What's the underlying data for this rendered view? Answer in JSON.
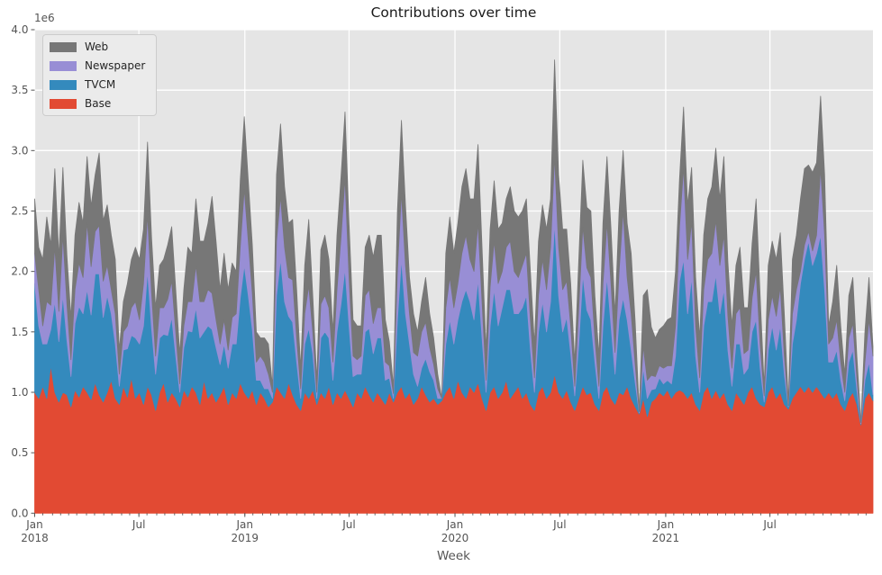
{
  "title": "Contributions over time",
  "axes": {
    "xlabel": "Week",
    "ylabel_offset": "1e6",
    "y_ticks": [
      "0.0",
      "0.5",
      "1.0",
      "1.5",
      "2.0",
      "2.5",
      "3.0",
      "3.5",
      "4.0"
    ],
    "x_major_ticks": [
      {
        "month": "2018-01",
        "label": "Jan",
        "year": "2018"
      },
      {
        "month": "2018-07",
        "label": "Jul"
      },
      {
        "month": "2019-01",
        "label": "Jan",
        "year": "2019"
      },
      {
        "month": "2019-07",
        "label": "Jul"
      },
      {
        "month": "2020-01",
        "label": "Jan",
        "year": "2020"
      },
      {
        "month": "2020-07",
        "label": "Jul"
      },
      {
        "month": "2021-01",
        "label": "Jan",
        "year": "2021"
      },
      {
        "month": "2021-07",
        "label": "Jul"
      }
    ]
  },
  "legend": {
    "items": [
      {
        "label": "Web",
        "color": "#777777"
      },
      {
        "label": "Newspaper",
        "color": "#988ED5"
      },
      {
        "label": "TVCM",
        "color": "#348ABD"
      },
      {
        "label": "Base",
        "color": "#E24A33"
      }
    ]
  },
  "style": {
    "figure_bg": "#ffffff",
    "plot_bg": "#e5e5e5",
    "grid_color": "#ffffff",
    "tick_color": "#555555",
    "text_color": "#262626"
  },
  "chart_data": {
    "type": "area",
    "stacked": true,
    "title": "Contributions over time",
    "xlabel": "Week",
    "x_start": "2018-01-01",
    "x_freq_days": 7,
    "n_points": 209,
    "value_scale": 1000000,
    "ylim": [
      0,
      4000000
    ],
    "grid": true,
    "legend_position": "upper-left",
    "series": [
      {
        "name": "Base",
        "color": "#E24A33",
        "values": [
          1.0,
          0.95,
          1.05,
          0.95,
          1.22,
          1.0,
          0.92,
          1.0,
          0.98,
          0.88,
          1.02,
          0.96,
          1.05,
          1.0,
          0.94,
          1.08,
          0.98,
          0.92,
          1.0,
          1.1,
          0.95,
          0.9,
          1.05,
          0.96,
          1.12,
          0.95,
          1.0,
          0.9,
          1.05,
          0.98,
          0.85,
          1.0,
          1.08,
          0.92,
          1.0,
          0.95,
          0.88,
          1.02,
          0.96,
          1.05,
          1.0,
          0.9,
          1.1,
          0.95,
          1.0,
          0.92,
          0.98,
          1.05,
          0.9,
          1.0,
          0.95,
          1.08,
          1.0,
          0.95,
          1.02,
          0.9,
          1.0,
          0.95,
          0.88,
          0.92,
          1.05,
          1.0,
          0.95,
          1.08,
          0.98,
          0.9,
          0.85,
          1.0,
          0.95,
          1.02,
          0.9,
          1.0,
          0.95,
          1.05,
          0.9,
          1.0,
          0.95,
          1.02,
          0.95,
          0.88,
          1.0,
          0.95,
          1.05,
          0.98,
          0.92,
          1.0,
          0.95,
          0.9,
          1.0,
          0.92,
          1.0,
          1.05,
          0.95,
          1.0,
          0.9,
          0.95,
          1.05,
          0.98,
          0.92,
          0.95,
          0.9,
          0.93,
          1.0,
          1.05,
          0.95,
          1.1,
          1.0,
          0.95,
          1.05,
          1.0,
          1.08,
          0.95,
          0.85,
          1.0,
          1.05,
          0.95,
          1.0,
          1.1,
          0.95,
          1.0,
          1.05,
          0.95,
          1.0,
          0.9,
          0.85,
          1.0,
          1.05,
          0.95,
          1.0,
          1.15,
          1.0,
          0.95,
          1.02,
          0.92,
          0.85,
          0.95,
          1.05,
          0.98,
          1.0,
          0.9,
          0.85,
          1.0,
          1.05,
          0.95,
          0.9,
          1.0,
          0.98,
          1.05,
          0.95,
          0.88,
          0.82,
          0.95,
          0.8,
          0.92,
          0.95,
          1.0,
          0.97,
          1.02,
          0.95,
          1.0,
          1.02,
          1.0,
          0.95,
          1.0,
          0.9,
          0.85,
          1.0,
          1.05,
          0.95,
          1.02,
          0.95,
          1.0,
          0.9,
          0.85,
          1.0,
          0.95,
          0.9,
          1.0,
          1.05,
          0.95,
          0.9,
          0.88,
          1.0,
          1.05,
          0.95,
          1.0,
          0.9,
          0.86,
          0.95,
          1.0,
          1.05,
          1.0,
          1.05,
          1.0,
          1.05,
          1.0,
          0.95,
          1.0,
          0.95,
          1.0,
          0.9,
          0.85,
          0.95,
          1.0,
          0.9,
          0.73,
          0.95,
          1.0,
          0.93
        ]
      },
      {
        "name": "TVCM",
        "color": "#348ABD",
        "values": [
          0.9,
          0.6,
          0.35,
          0.45,
          0.3,
          0.75,
          0.5,
          0.8,
          0.45,
          0.25,
          0.55,
          0.75,
          0.6,
          0.85,
          0.7,
          0.9,
          1.0,
          0.7,
          0.8,
          0.55,
          0.45,
          0.15,
          0.3,
          0.4,
          0.35,
          0.5,
          0.4,
          0.65,
          0.95,
          0.55,
          0.3,
          0.45,
          0.4,
          0.55,
          0.62,
          0.35,
          0.12,
          0.35,
          0.55,
          0.45,
          0.7,
          0.55,
          0.4,
          0.6,
          0.52,
          0.45,
          0.25,
          0.35,
          0.3,
          0.4,
          0.45,
          0.7,
          1.05,
          0.85,
          0.5,
          0.2,
          0.1,
          0.08,
          0.15,
          0.03,
          0.75,
          1.1,
          0.8,
          0.55,
          0.6,
          0.35,
          0.1,
          0.4,
          0.58,
          0.3,
          0.05,
          0.45,
          0.55,
          0.4,
          0.2,
          0.5,
          0.78,
          1.0,
          0.6,
          0.25,
          0.15,
          0.2,
          0.45,
          0.55,
          0.4,
          0.45,
          0.5,
          0.2,
          0.12,
          0.03,
          0.6,
          1.05,
          0.7,
          0.4,
          0.25,
          0.1,
          0.15,
          0.3,
          0.25,
          0.15,
          0.05,
          0.02,
          0.4,
          0.55,
          0.45,
          0.5,
          0.75,
          0.9,
          0.7,
          0.6,
          0.85,
          0.5,
          0.15,
          0.55,
          0.8,
          0.6,
          0.7,
          0.75,
          0.9,
          0.65,
          0.6,
          0.75,
          0.8,
          0.45,
          0.15,
          0.5,
          0.7,
          0.55,
          0.75,
          1.25,
          0.8,
          0.55,
          0.6,
          0.4,
          0.12,
          0.45,
          0.92,
          0.7,
          0.6,
          0.35,
          0.1,
          0.55,
          0.9,
          0.6,
          0.25,
          0.6,
          0.8,
          0.55,
          0.4,
          0.2,
          0.01,
          0.25,
          0.15,
          0.1,
          0.08,
          0.12,
          0.1,
          0.08,
          0.12,
          0.3,
          0.9,
          1.1,
          0.7,
          0.95,
          0.4,
          0.15,
          0.55,
          0.7,
          0.8,
          0.95,
          0.7,
          0.85,
          0.45,
          0.2,
          0.4,
          0.45,
          0.25,
          0.2,
          0.45,
          0.65,
          0.3,
          0.04,
          0.35,
          0.5,
          0.4,
          0.55,
          0.25,
          0.02,
          0.45,
          0.6,
          0.85,
          1.1,
          1.2,
          1.05,
          1.1,
          1.3,
          0.9,
          0.25,
          0.3,
          0.35,
          0.2,
          0.08,
          0.3,
          0.35,
          0.12,
          0.01,
          0.15,
          0.25,
          0.05
        ]
      },
      {
        "name": "Newspaper",
        "color": "#988ED5",
        "values": [
          0.25,
          0.3,
          0.15,
          0.35,
          0.2,
          0.45,
          0.25,
          0.5,
          0.3,
          0.14,
          0.28,
          0.36,
          0.3,
          0.55,
          0.4,
          0.35,
          0.4,
          0.3,
          0.25,
          0.2,
          0.25,
          0.1,
          0.15,
          0.19,
          0.23,
          0.3,
          0.2,
          0.35,
          0.47,
          0.3,
          0.15,
          0.25,
          0.22,
          0.3,
          0.3,
          0.2,
          0.07,
          0.18,
          0.24,
          0.25,
          0.35,
          0.3,
          0.25,
          0.3,
          0.3,
          0.23,
          0.17,
          0.2,
          0.15,
          0.22,
          0.25,
          0.42,
          0.63,
          0.45,
          0.3,
          0.15,
          0.2,
          0.22,
          0.12,
          0.05,
          0.45,
          0.52,
          0.45,
          0.32,
          0.35,
          0.2,
          0.08,
          0.25,
          0.35,
          0.18,
          0.05,
          0.28,
          0.3,
          0.25,
          0.15,
          0.35,
          0.55,
          0.75,
          0.4,
          0.17,
          0.12,
          0.15,
          0.3,
          0.32,
          0.25,
          0.25,
          0.25,
          0.15,
          0.1,
          0.04,
          0.4,
          0.55,
          0.4,
          0.25,
          0.18,
          0.25,
          0.3,
          0.3,
          0.2,
          0.13,
          0.08,
          0.0,
          0.3,
          0.35,
          0.3,
          0.3,
          0.4,
          0.45,
          0.35,
          0.4,
          0.47,
          0.3,
          0.1,
          0.32,
          0.4,
          0.35,
          0.3,
          0.35,
          0.4,
          0.35,
          0.3,
          0.35,
          0.35,
          0.25,
          0.12,
          0.3,
          0.35,
          0.35,
          0.45,
          0.55,
          0.4,
          0.35,
          0.3,
          0.23,
          0.08,
          0.3,
          0.4,
          0.35,
          0.35,
          0.2,
          0.1,
          0.35,
          0.45,
          0.35,
          0.18,
          0.4,
          0.72,
          0.35,
          0.3,
          0.15,
          0.01,
          0.18,
          0.15,
          0.12,
          0.1,
          0.1,
          0.13,
          0.12,
          0.15,
          0.25,
          0.45,
          0.76,
          0.45,
          0.46,
          0.25,
          0.12,
          0.3,
          0.35,
          0.4,
          0.45,
          0.4,
          0.45,
          0.28,
          0.15,
          0.25,
          0.3,
          0.17,
          0.15,
          0.28,
          0.4,
          0.2,
          0.05,
          0.25,
          0.25,
          0.28,
          0.32,
          0.15,
          0.01,
          0.25,
          0.25,
          0.1,
          0.12,
          0.08,
          0.12,
          0.15,
          0.55,
          0.45,
          0.15,
          0.2,
          0.25,
          0.15,
          0.07,
          0.2,
          0.22,
          0.1,
          0.01,
          0.15,
          0.35,
          0.32
        ]
      },
      {
        "name": "Web",
        "color": "#777777",
        "values": [
          0.45,
          0.35,
          0.55,
          0.7,
          0.5,
          0.65,
          0.45,
          0.56,
          0.4,
          0.35,
          0.45,
          0.5,
          0.45,
          0.55,
          0.5,
          0.47,
          0.6,
          0.5,
          0.5,
          0.45,
          0.45,
          0.2,
          0.25,
          0.35,
          0.4,
          0.45,
          0.5,
          0.45,
          0.6,
          0.45,
          0.4,
          0.35,
          0.4,
          0.45,
          0.45,
          0.35,
          0.25,
          0.3,
          0.45,
          0.4,
          0.55,
          0.5,
          0.5,
          0.55,
          0.8,
          0.65,
          0.45,
          0.55,
          0.5,
          0.45,
          0.35,
          0.55,
          0.6,
          0.5,
          0.4,
          0.25,
          0.15,
          0.2,
          0.25,
          0.05,
          0.55,
          0.6,
          0.5,
          0.45,
          0.5,
          0.4,
          0.17,
          0.4,
          0.55,
          0.3,
          0.1,
          0.45,
          0.5,
          0.4,
          0.25,
          0.45,
          0.5,
          0.55,
          0.45,
          0.3,
          0.28,
          0.25,
          0.4,
          0.45,
          0.55,
          0.6,
          0.6,
          0.35,
          0.2,
          0.06,
          0.5,
          0.6,
          0.5,
          0.3,
          0.32,
          0.2,
          0.25,
          0.37,
          0.28,
          0.22,
          0.12,
          0.0,
          0.45,
          0.5,
          0.45,
          0.5,
          0.55,
          0.55,
          0.5,
          0.6,
          0.65,
          0.45,
          0.25,
          0.48,
          0.5,
          0.45,
          0.4,
          0.4,
          0.45,
          0.5,
          0.5,
          0.45,
          0.45,
          0.4,
          0.28,
          0.45,
          0.45,
          0.5,
          0.4,
          0.8,
          0.6,
          0.5,
          0.43,
          0.35,
          0.2,
          0.4,
          0.55,
          0.5,
          0.55,
          0.35,
          0.25,
          0.5,
          0.55,
          0.45,
          0.32,
          0.5,
          0.5,
          0.45,
          0.5,
          0.35,
          0.01,
          0.42,
          0.75,
          0.4,
          0.32,
          0.3,
          0.35,
          0.38,
          0.4,
          0.45,
          0.4,
          0.5,
          0.45,
          0.45,
          0.4,
          0.33,
          0.45,
          0.5,
          0.55,
          0.6,
          0.55,
          0.65,
          0.45,
          0.35,
          0.4,
          0.5,
          0.38,
          0.35,
          0.45,
          0.6,
          0.4,
          0.08,
          0.45,
          0.45,
          0.47,
          0.45,
          0.35,
          0.03,
          0.45,
          0.45,
          0.6,
          0.63,
          0.55,
          0.65,
          0.6,
          0.6,
          0.5,
          0.15,
          0.3,
          0.45,
          0.3,
          0.15,
          0.35,
          0.38,
          0.18,
          0.0,
          0.25,
          0.35,
          0.08
        ]
      }
    ]
  }
}
